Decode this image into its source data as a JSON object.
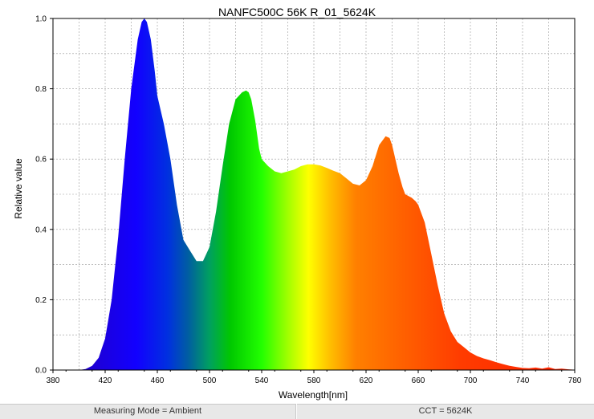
{
  "chart_data": {
    "type": "area",
    "title": "NANFC500C 56K R_01_5624K",
    "xlabel": "Wavelength[nm]",
    "ylabel": "Relative value",
    "xlim": [
      380,
      780
    ],
    "ylim": [
      0,
      1.0
    ],
    "x_ticks": [
      "380",
      "420",
      "460",
      "500",
      "540",
      "580",
      "620",
      "660",
      "700",
      "740",
      "780"
    ],
    "y_ticks": [
      "0.0",
      "0.2",
      "0.4",
      "0.6",
      "0.8",
      "1.0"
    ],
    "grid": true,
    "fill": "visible-spectrum gradient",
    "x": [
      380,
      400,
      405,
      410,
      415,
      420,
      425,
      430,
      435,
      440,
      445,
      448,
      450,
      452,
      455,
      458,
      460,
      465,
      470,
      475,
      480,
      485,
      490,
      495,
      500,
      505,
      510,
      515,
      520,
      525,
      528,
      530,
      532,
      535,
      538,
      540,
      545,
      550,
      555,
      560,
      565,
      570,
      575,
      580,
      585,
      590,
      595,
      600,
      605,
      610,
      615,
      620,
      625,
      630,
      635,
      638,
      640,
      645,
      648,
      650,
      655,
      658,
      660,
      665,
      670,
      675,
      680,
      685,
      690,
      695,
      700,
      705,
      710,
      715,
      720,
      725,
      730,
      735,
      740,
      745,
      750,
      755,
      760,
      765,
      770,
      775,
      780
    ],
    "values": [
      0,
      0,
      0.003,
      0.012,
      0.035,
      0.09,
      0.2,
      0.38,
      0.6,
      0.8,
      0.94,
      0.99,
      1.0,
      0.99,
      0.94,
      0.85,
      0.78,
      0.7,
      0.6,
      0.47,
      0.37,
      0.34,
      0.31,
      0.31,
      0.35,
      0.45,
      0.58,
      0.7,
      0.77,
      0.79,
      0.795,
      0.79,
      0.77,
      0.71,
      0.63,
      0.6,
      0.58,
      0.565,
      0.56,
      0.565,
      0.57,
      0.58,
      0.585,
      0.585,
      0.582,
      0.575,
      0.567,
      0.56,
      0.545,
      0.53,
      0.525,
      0.54,
      0.58,
      0.64,
      0.665,
      0.66,
      0.64,
      0.56,
      0.52,
      0.5,
      0.49,
      0.48,
      0.47,
      0.42,
      0.33,
      0.24,
      0.16,
      0.11,
      0.08,
      0.065,
      0.05,
      0.04,
      0.033,
      0.028,
      0.022,
      0.017,
      0.012,
      0.009,
      0.006,
      0.005,
      0.007,
      0.004,
      0.008,
      0.003,
      0.004,
      0.002,
      0.001
    ]
  },
  "status": {
    "measuring_mode": "Measuring Mode = Ambient",
    "cct": "CCT = 5624K"
  }
}
